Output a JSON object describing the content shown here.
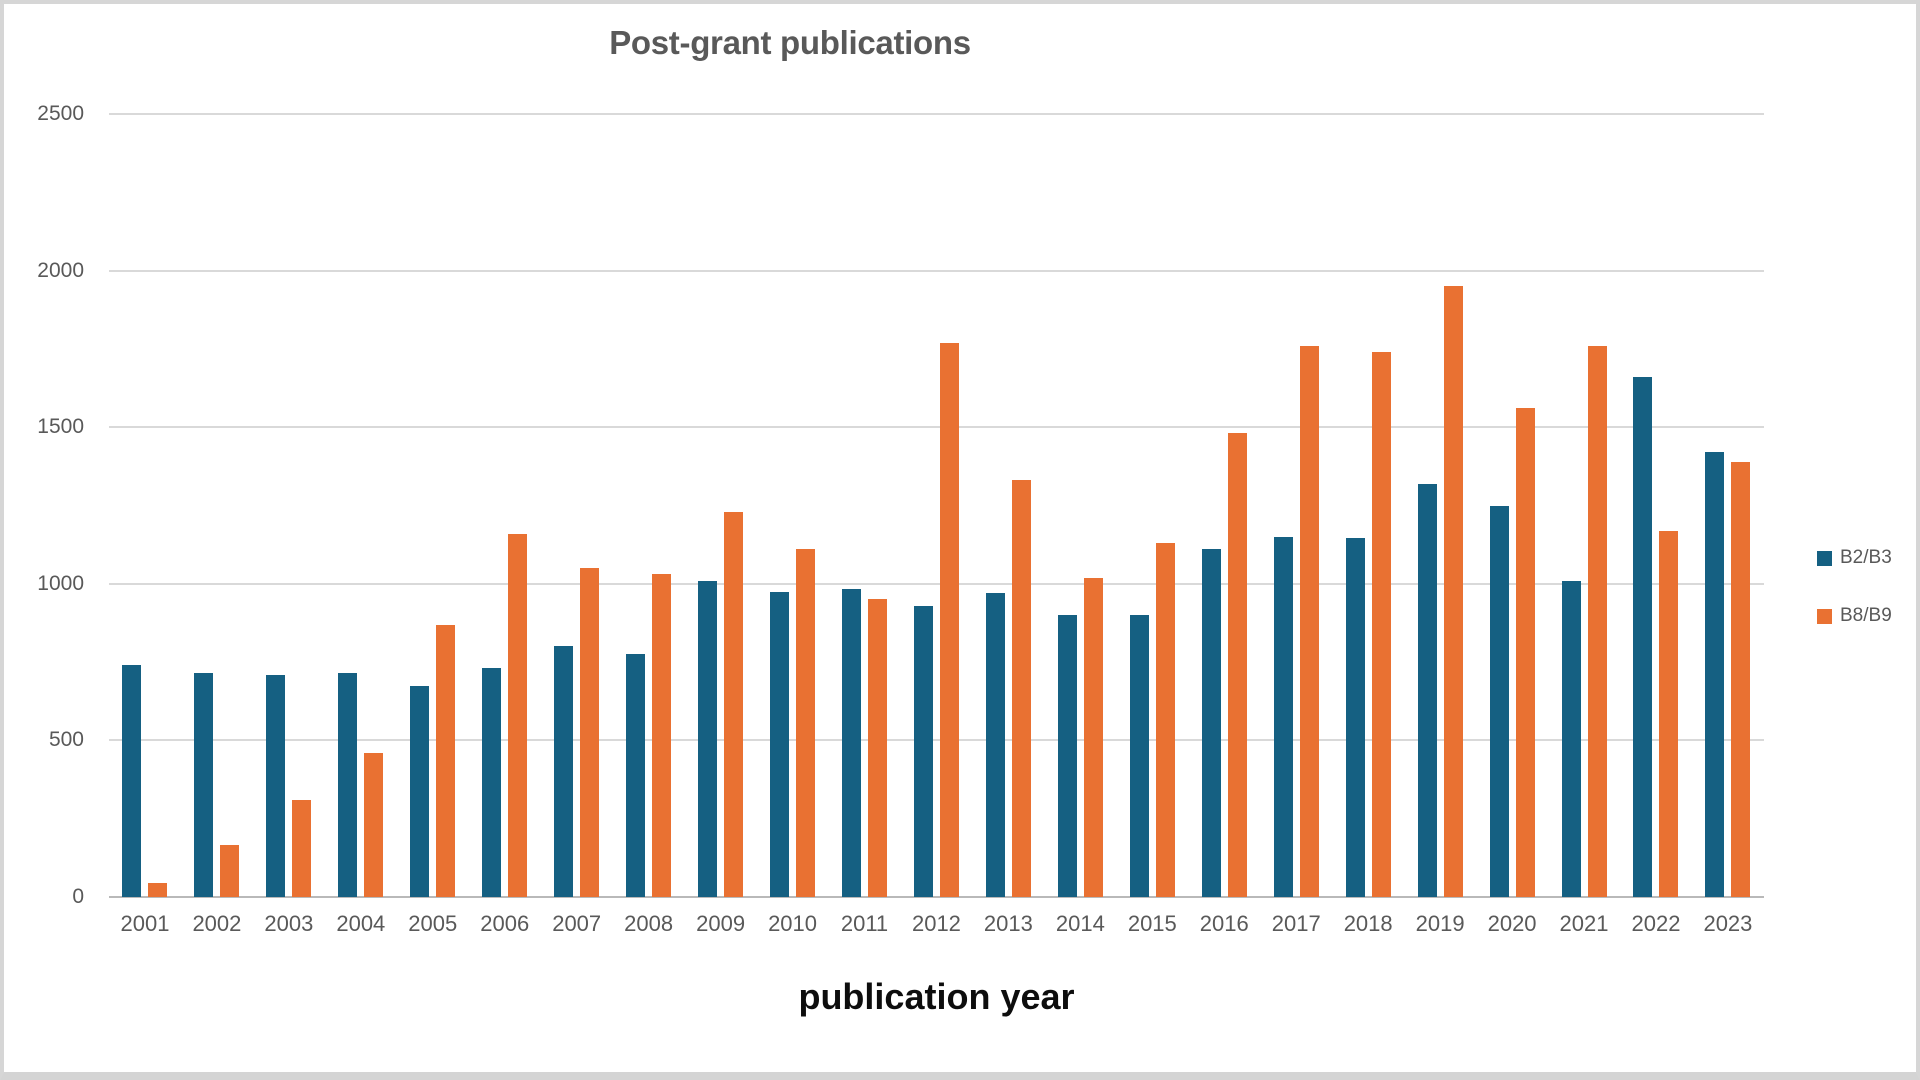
{
  "chart": {
    "title": "Post-grant publications",
    "x_axis_title": "publication year",
    "colors": {
      "series1": "#156082",
      "series2": "#E97132",
      "gridline": "#D9D9D9",
      "text_gray": "#595959"
    }
  },
  "legend": {
    "items": [
      {
        "label": "B2/B3",
        "color": "#156082"
      },
      {
        "label": "B8/B9",
        "color": "#E97132"
      }
    ]
  },
  "chart_data": {
    "type": "bar",
    "title": "Post-grant publications",
    "xlabel": "publication year",
    "ylabel": "",
    "ylim": [
      0,
      2500
    ],
    "y_tick_interval": 500,
    "y_ticks": [
      0,
      500,
      1000,
      1500,
      2000,
      2500
    ],
    "grid": true,
    "legend_position": "right",
    "categories": [
      "2001",
      "2002",
      "2003",
      "2004",
      "2005",
      "2006",
      "2007",
      "2008",
      "2009",
      "2010",
      "2011",
      "2012",
      "2013",
      "2014",
      "2015",
      "2016",
      "2017",
      "2018",
      "2019",
      "2020",
      "2021",
      "2022",
      "2023"
    ],
    "series": [
      {
        "name": "B2/B3",
        "color": "#156082",
        "values": [
          740,
          715,
          710,
          715,
          675,
          730,
          800,
          775,
          1010,
          975,
          985,
          930,
          970,
          900,
          900,
          1110,
          1150,
          1145,
          1320,
          1250,
          1010,
          1660,
          1420
        ]
      },
      {
        "name": "B8/B9",
        "color": "#E97132",
        "values": [
          45,
          165,
          310,
          460,
          870,
          1160,
          1050,
          1030,
          1230,
          1110,
          950,
          1770,
          1330,
          1020,
          1130,
          1480,
          1760,
          1740,
          1950,
          1560,
          1760,
          1170,
          1390
        ]
      }
    ]
  }
}
